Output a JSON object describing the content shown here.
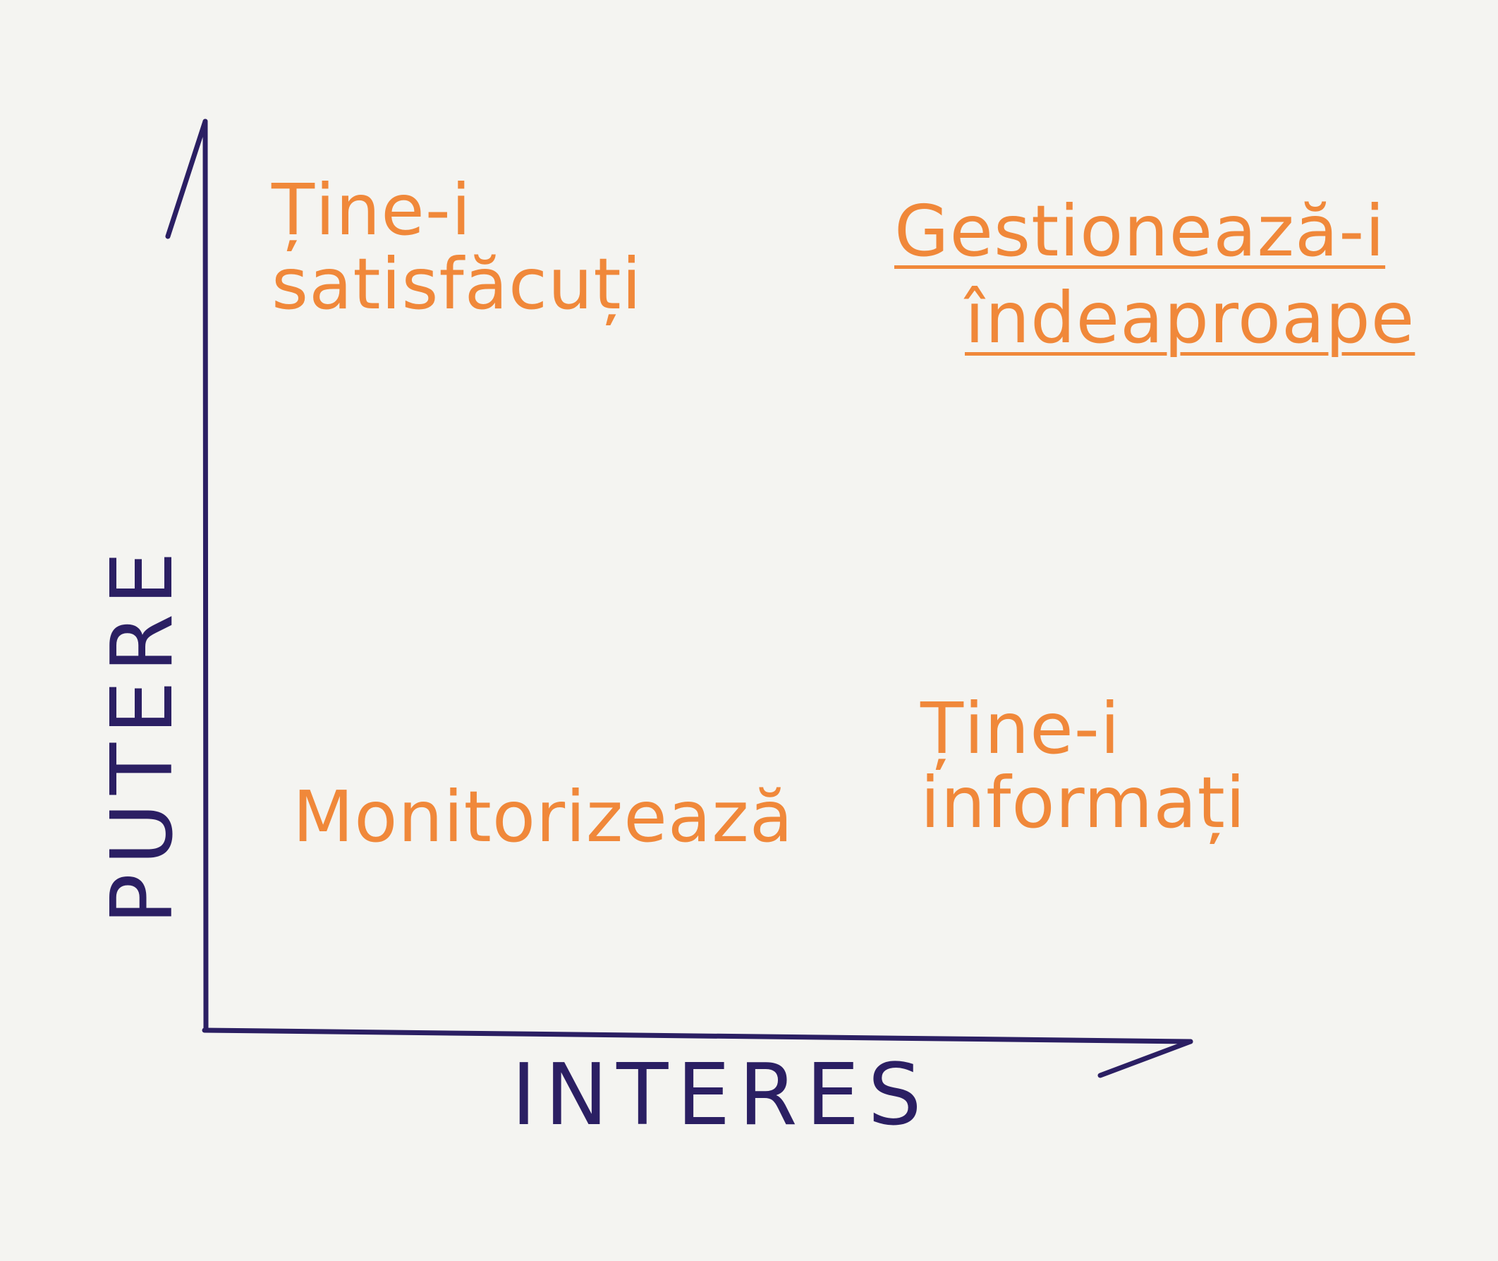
{
  "colors": {
    "axis": "#2b1f63",
    "quadrant_text": "#f0883a",
    "background": "#f4f4f1"
  },
  "axes": {
    "x_label": "INTERES",
    "y_label": "PUTERE"
  },
  "quadrants": {
    "top_left": {
      "line1": "Ține-i",
      "line2": "satisfăcuți"
    },
    "top_right": {
      "line1": "Gestionează-i",
      "line2": "îndeaproape"
    },
    "bottom_left": {
      "line1": "Monitorizează"
    },
    "bottom_right": {
      "line1": "Ține-i",
      "line2": "informați"
    }
  }
}
